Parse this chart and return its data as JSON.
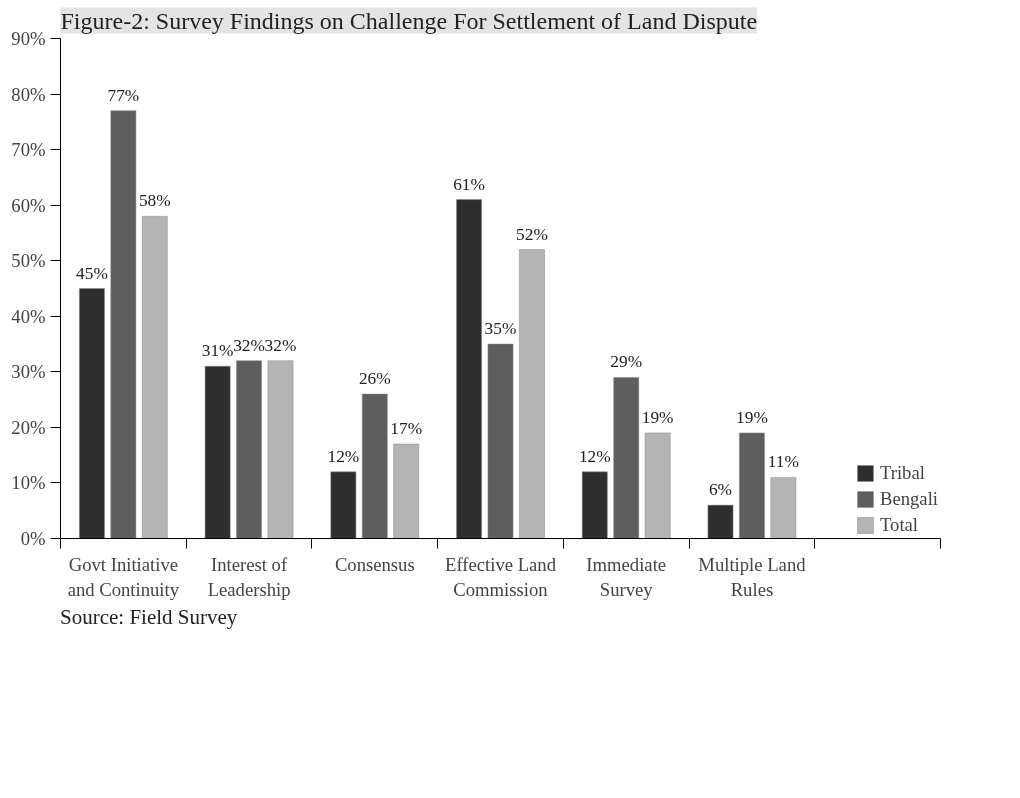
{
  "chart_data": {
    "type": "bar",
    "title": "Figure-2: Survey Findings on Challenge For Settlement of Land Dispute",
    "categories": [
      "Govt Initiative and Continuity",
      "Interest of Leadership",
      "Consensus",
      "Effective Land Commission",
      "Immediate Survey",
      "Multiple Land Rules",
      null
    ],
    "series": [
      {
        "name": "Tribal",
        "color": "#2e2e2e",
        "values": [
          45,
          31,
          12,
          61,
          12,
          6,
          null
        ],
        "value_labels": [
          "45%",
          "31%",
          "12%",
          "61%",
          "12%",
          "6%",
          null
        ]
      },
      {
        "name": "Bengali",
        "color": "#5e5e5e",
        "values": [
          77,
          32,
          26,
          35,
          29,
          19,
          null
        ],
        "value_labels": [
          "77%",
          "32%",
          "26%",
          "35%",
          "29%",
          "19%",
          null
        ]
      },
      {
        "name": "Total",
        "color": "#b4b4b4",
        "values": [
          58,
          32,
          17,
          52,
          19,
          11,
          null
        ],
        "value_labels": [
          "58%",
          "32%",
          "17%",
          "52%",
          "19%",
          "11%",
          null
        ]
      }
    ],
    "ylim": [
      0,
      90
    ],
    "yticks": [
      {
        "value": 0,
        "label": "0%"
      },
      {
        "value": 10,
        "label": "10%"
      },
      {
        "value": 20,
        "label": "20%"
      },
      {
        "value": 30,
        "label": "30%"
      },
      {
        "value": 40,
        "label": "40%"
      },
      {
        "value": 50,
        "label": "50%"
      },
      {
        "value": 60,
        "label": "60%"
      },
      {
        "value": 70,
        "label": "70%"
      },
      {
        "value": 80,
        "label": "80%"
      },
      {
        "value": 90,
        "label": "90%"
      }
    ],
    "grid": false,
    "legend": "bottom right",
    "annotations": [
      "Source: Field Survey"
    ]
  }
}
